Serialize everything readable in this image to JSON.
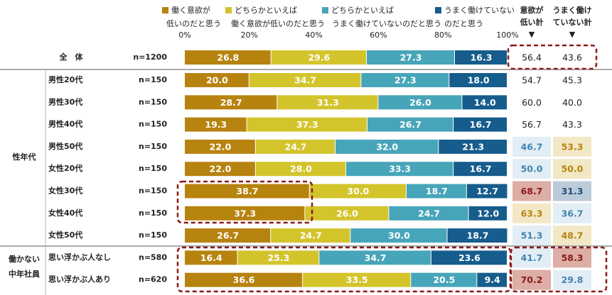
{
  "chart_data": {
    "type": "stacked-bar",
    "orientation": "horizontal",
    "xlim": [
      0,
      100
    ],
    "xticks": [
      {
        "value": 0,
        "label": "0%"
      },
      {
        "value": 20,
        "label": "20%"
      },
      {
        "value": 40,
        "label": "40%"
      },
      {
        "value": 60,
        "label": "60%"
      },
      {
        "value": 80,
        "label": "80%"
      },
      {
        "value": 100,
        "label": "100%"
      }
    ],
    "categories": [
      "全　体",
      "男性20代",
      "男性30代",
      "男性40代",
      "男性50代",
      "女性20代",
      "女性30代",
      "女性40代",
      "女性50代",
      "思い浮かぶ人なし",
      "思い浮かぶ人あり"
    ],
    "sample_sizes": [
      "n=1200",
      "n=150",
      "n=150",
      "n=150",
      "n=150",
      "n=150",
      "n=150",
      "n=150",
      "n=150",
      "n=580",
      "n=620"
    ],
    "groups": [
      [
        "性年代"
      ],
      [
        "働かない",
        "中年社員"
      ]
    ],
    "series": [
      {
        "name": [
          "働く意欲が",
          "低いのだと思う"
        ],
        "color": "#b7830f",
        "values": [
          26.8,
          20.0,
          28.7,
          19.3,
          22.0,
          22.0,
          38.7,
          37.3,
          26.7,
          16.4,
          36.6
        ],
        "value_labels": [
          "26.8",
          "20.0",
          "28.7",
          "19.3",
          "22.0",
          "22.0",
          "38.7",
          "37.3",
          "26.7",
          "16.4",
          "36.6"
        ]
      },
      {
        "name": [
          "どちらかといえば",
          "働く意欲が低いのだと思う"
        ],
        "color": "#d3c42c",
        "values": [
          29.6,
          34.7,
          31.3,
          37.3,
          24.7,
          28.0,
          30.0,
          26.0,
          24.7,
          25.3,
          33.5
        ],
        "value_labels": [
          "29.6",
          "34.7",
          "31.3",
          "37.3",
          "24.7",
          "28.0",
          "30.0",
          "26.0",
          "24.7",
          "25.3",
          "33.5"
        ]
      },
      {
        "name": [
          "どちらかといえば",
          "うまく働けていないのだと思う"
        ],
        "color": "#47a5b9",
        "values": [
          27.3,
          27.3,
          26.0,
          26.7,
          32.0,
          33.3,
          18.7,
          24.7,
          30.0,
          34.7,
          20.5
        ],
        "value_labels": [
          "27.3",
          "27.3",
          "26.0",
          "26.7",
          "32.0",
          "33.3",
          "18.7",
          "24.7",
          "30.0",
          "34.7",
          "20.5"
        ]
      },
      {
        "name": [
          "うまく働けていない",
          "のだと思う"
        ],
        "color": "#165c8c",
        "values": [
          16.3,
          18.0,
          14.0,
          16.7,
          21.3,
          16.7,
          12.7,
          12.0,
          18.7,
          23.6,
          9.4
        ],
        "value_labels": [
          "16.3",
          "18.0",
          "14.0",
          "16.7",
          "21.3",
          "16.7",
          "12.7",
          "12.0",
          "18.7",
          "23.6",
          "9.4"
        ]
      }
    ],
    "totals": [
      {
        "name": [
          "意欲が",
          "低い計"
        ],
        "marker": "▼",
        "values": [
          56.4,
          54.7,
          60.0,
          56.7,
          46.7,
          50.0,
          68.7,
          63.3,
          51.3,
          41.7,
          70.2
        ],
        "value_labels": [
          "56.4",
          "54.7",
          "60.0",
          "56.7",
          "46.7",
          "50.0",
          "68.7",
          "63.3",
          "51.3",
          "41.7",
          "70.2"
        ],
        "backgrounds": [
          null,
          null,
          null,
          null,
          "#e2edf5",
          "#e2edf5",
          "#dcaea5",
          "#f3e8c6",
          "#e2edf5",
          "#e2edf5",
          "#dcaea5"
        ],
        "text_colors": [
          null,
          null,
          null,
          null,
          "#3f86b0",
          "#3f86b0",
          "#8b1a1a",
          "#b7830f",
          "#3f86b0",
          "#3f86b0",
          "#8b1a1a"
        ]
      },
      {
        "name": [
          "うまく働け",
          "ていない計"
        ],
        "marker": "▼",
        "values": [
          43.6,
          45.3,
          40.0,
          43.3,
          53.3,
          50.0,
          31.3,
          36.7,
          48.7,
          58.3,
          29.8
        ],
        "value_labels": [
          "43.6",
          "45.3",
          "40.0",
          "43.3",
          "53.3",
          "50.0",
          "31.3",
          "36.7",
          "48.7",
          "58.3",
          "29.8"
        ],
        "backgrounds": [
          null,
          null,
          null,
          null,
          "#f3e8c6",
          "#f3e8c6",
          "#bccbd9",
          "#e2edf5",
          "#f3e8c6",
          "#dcaea5",
          "#e2edf5"
        ],
        "text_colors": [
          null,
          null,
          null,
          null,
          "#b7830f",
          "#b7830f",
          "#1f4e79",
          "#3f86b0",
          "#b7830f",
          "#8b1a1a",
          "#3f86b0"
        ]
      }
    ]
  }
}
